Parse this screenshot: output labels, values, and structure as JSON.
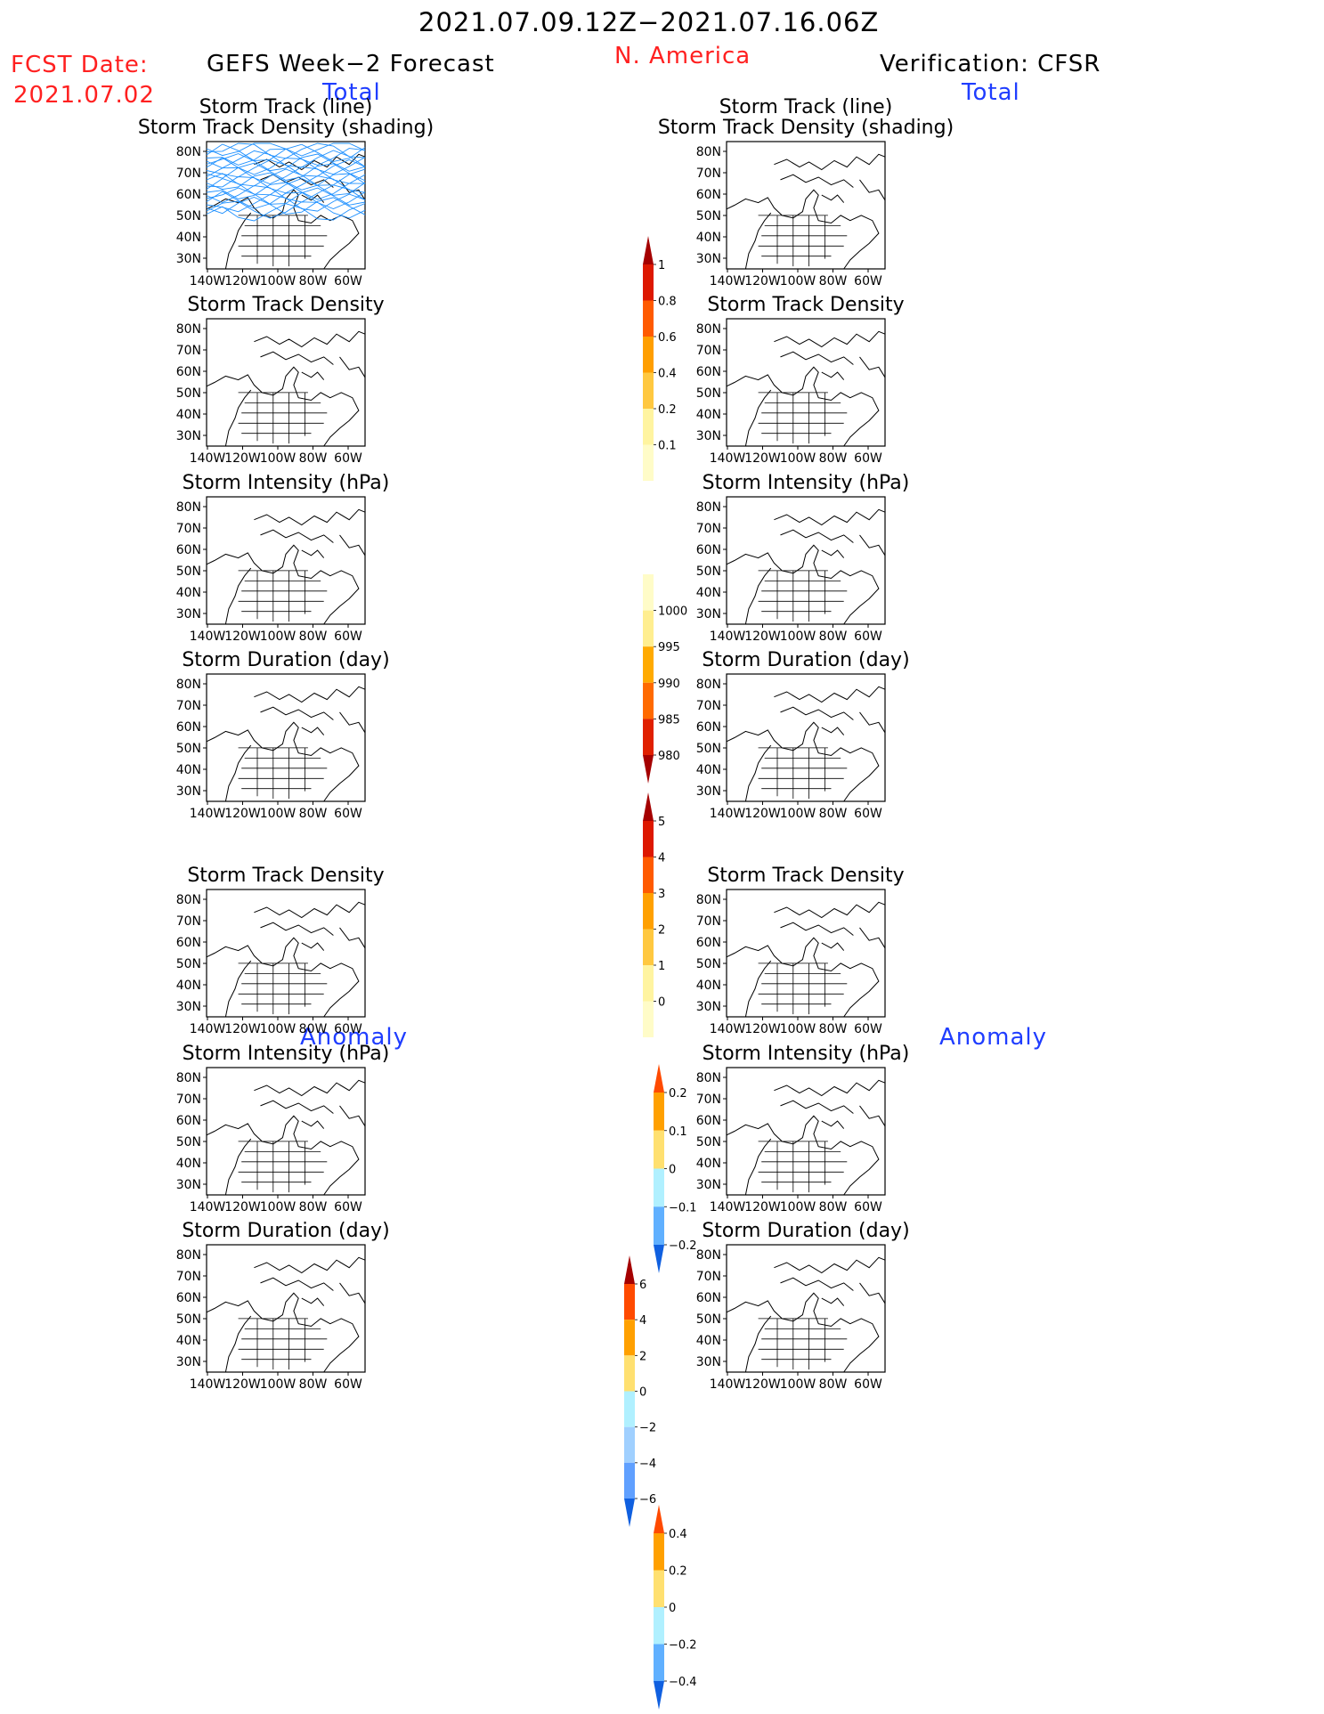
{
  "header": {
    "period": "2021.07.09.12Z−2021.07.16.06Z",
    "region": "N. America",
    "fcst_label": "FCST Date:",
    "fcst_date": "2021.07.02",
    "left_title": "GEFS Week−2 Forecast",
    "right_title": "Verification: CFSR"
  },
  "sections": {
    "total": "Total",
    "anomaly": "Anomaly"
  },
  "map_axes": {
    "lon_labels": [
      "140W",
      "120W",
      "100W",
      "80W",
      "60W"
    ],
    "lat_labels": [
      "80N",
      "70N",
      "60N",
      "50N",
      "40N",
      "30N"
    ]
  },
  "panels": {
    "left": [
      {
        "title": [
          "Storm Track (line)",
          "Storm Track Density (shading)"
        ]
      },
      {
        "title": [
          "Storm Track Density"
        ]
      },
      {
        "title": [
          "Storm Intensity (hPa)"
        ]
      },
      {
        "title": [
          "Storm Duration (day)"
        ]
      },
      {
        "title": [
          "Storm Track Density"
        ]
      },
      {
        "title": [
          "Storm Intensity (hPa)"
        ]
      },
      {
        "title": [
          "Storm Duration (day)"
        ]
      }
    ],
    "right": [
      {
        "title": [
          "Storm Track (line)",
          "Storm Track Density (shading)"
        ]
      },
      {
        "title": [
          "Storm Track Density"
        ]
      },
      {
        "title": [
          "Storm Intensity (hPa)"
        ]
      },
      {
        "title": [
          "Storm Duration (day)"
        ]
      },
      {
        "title": [
          "Storm Track Density"
        ]
      },
      {
        "title": [
          "Storm Intensity (hPa)"
        ]
      },
      {
        "title": [
          "Storm Duration (day)"
        ]
      }
    ]
  },
  "colorbars": {
    "density": {
      "labels": [
        "1",
        "0.8",
        "0.6",
        "0.4",
        "0.2",
        "0.1"
      ],
      "colors": [
        "#a50000",
        "#dd1800",
        "#ff5a00",
        "#ff9e00",
        "#ffc840",
        "#fff4a0",
        "#fffcc8"
      ]
    },
    "intensity": {
      "labels": [
        "1000",
        "995",
        "990",
        "985",
        "980"
      ],
      "colors": [
        "#fffcc8",
        "#ffee90",
        "#ffaa00",
        "#ff6a00",
        "#e02000",
        "#a50000"
      ]
    },
    "duration": {
      "labels": [
        "5",
        "4",
        "3",
        "2",
        "1",
        "0"
      ],
      "colors": [
        "#a50000",
        "#dd1800",
        "#ff5a00",
        "#ffa000",
        "#ffc840",
        "#fff4a0",
        "#fffcc8"
      ]
    },
    "anom_density": {
      "labels": [
        "0.2",
        "0.1",
        "0",
        "−0.1",
        "−0.2"
      ],
      "colors": [
        "#ff4a00",
        "#ffa000",
        "#ffe070",
        "#b0f0ff",
        "#60b0ff",
        "#1060e0"
      ]
    },
    "anom_intensity": {
      "labels": [
        "6",
        "4",
        "2",
        "0",
        "−2",
        "−4",
        "−6"
      ],
      "colors": [
        "#a50000",
        "#ff4a00",
        "#ffa000",
        "#ffe070",
        "#b0f0ff",
        "#a0d0ff",
        "#60a0ff",
        "#1060e0"
      ]
    },
    "anom_duration": {
      "labels": [
        "0.4",
        "0.2",
        "0",
        "−0.2",
        "−0.4"
      ],
      "colors": [
        "#ff4a00",
        "#ffa000",
        "#ffe070",
        "#b0f0ff",
        "#60b0ff",
        "#1060e0"
      ]
    }
  },
  "colors": {
    "track_line": "#1e90ff",
    "map_outline": "#000000",
    "title_red": "#ff2020",
    "section_blue": "#1f3dff"
  }
}
